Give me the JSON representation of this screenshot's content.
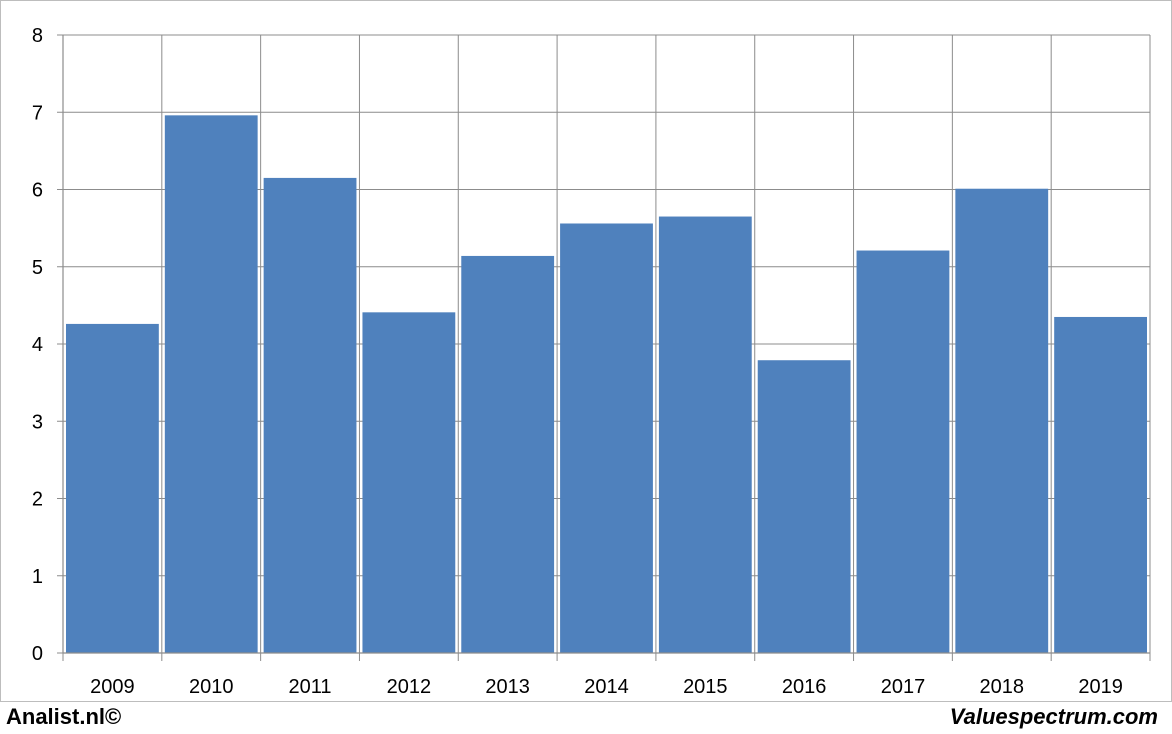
{
  "chart_data": {
    "type": "bar",
    "categories": [
      "2009",
      "2010",
      "2011",
      "2012",
      "2013",
      "2014",
      "2015",
      "2016",
      "2017",
      "2018",
      "2019"
    ],
    "values": [
      4.26,
      6.96,
      6.15,
      4.41,
      5.14,
      5.56,
      5.65,
      3.79,
      5.21,
      6.01,
      4.35
    ],
    "title": "",
    "xlabel": "",
    "ylabel": "",
    "ylim": [
      0,
      8
    ],
    "yticks": [
      "0",
      "1",
      "2",
      "3",
      "4",
      "5",
      "6",
      "7",
      "8"
    ],
    "grid": true,
    "legend": "none",
    "bar_color": "#4f81bd",
    "grid_color": "#8c8c8c"
  },
  "footer": {
    "left_text": "Analist.nl©",
    "right_text": "Valuespectrum.com"
  }
}
